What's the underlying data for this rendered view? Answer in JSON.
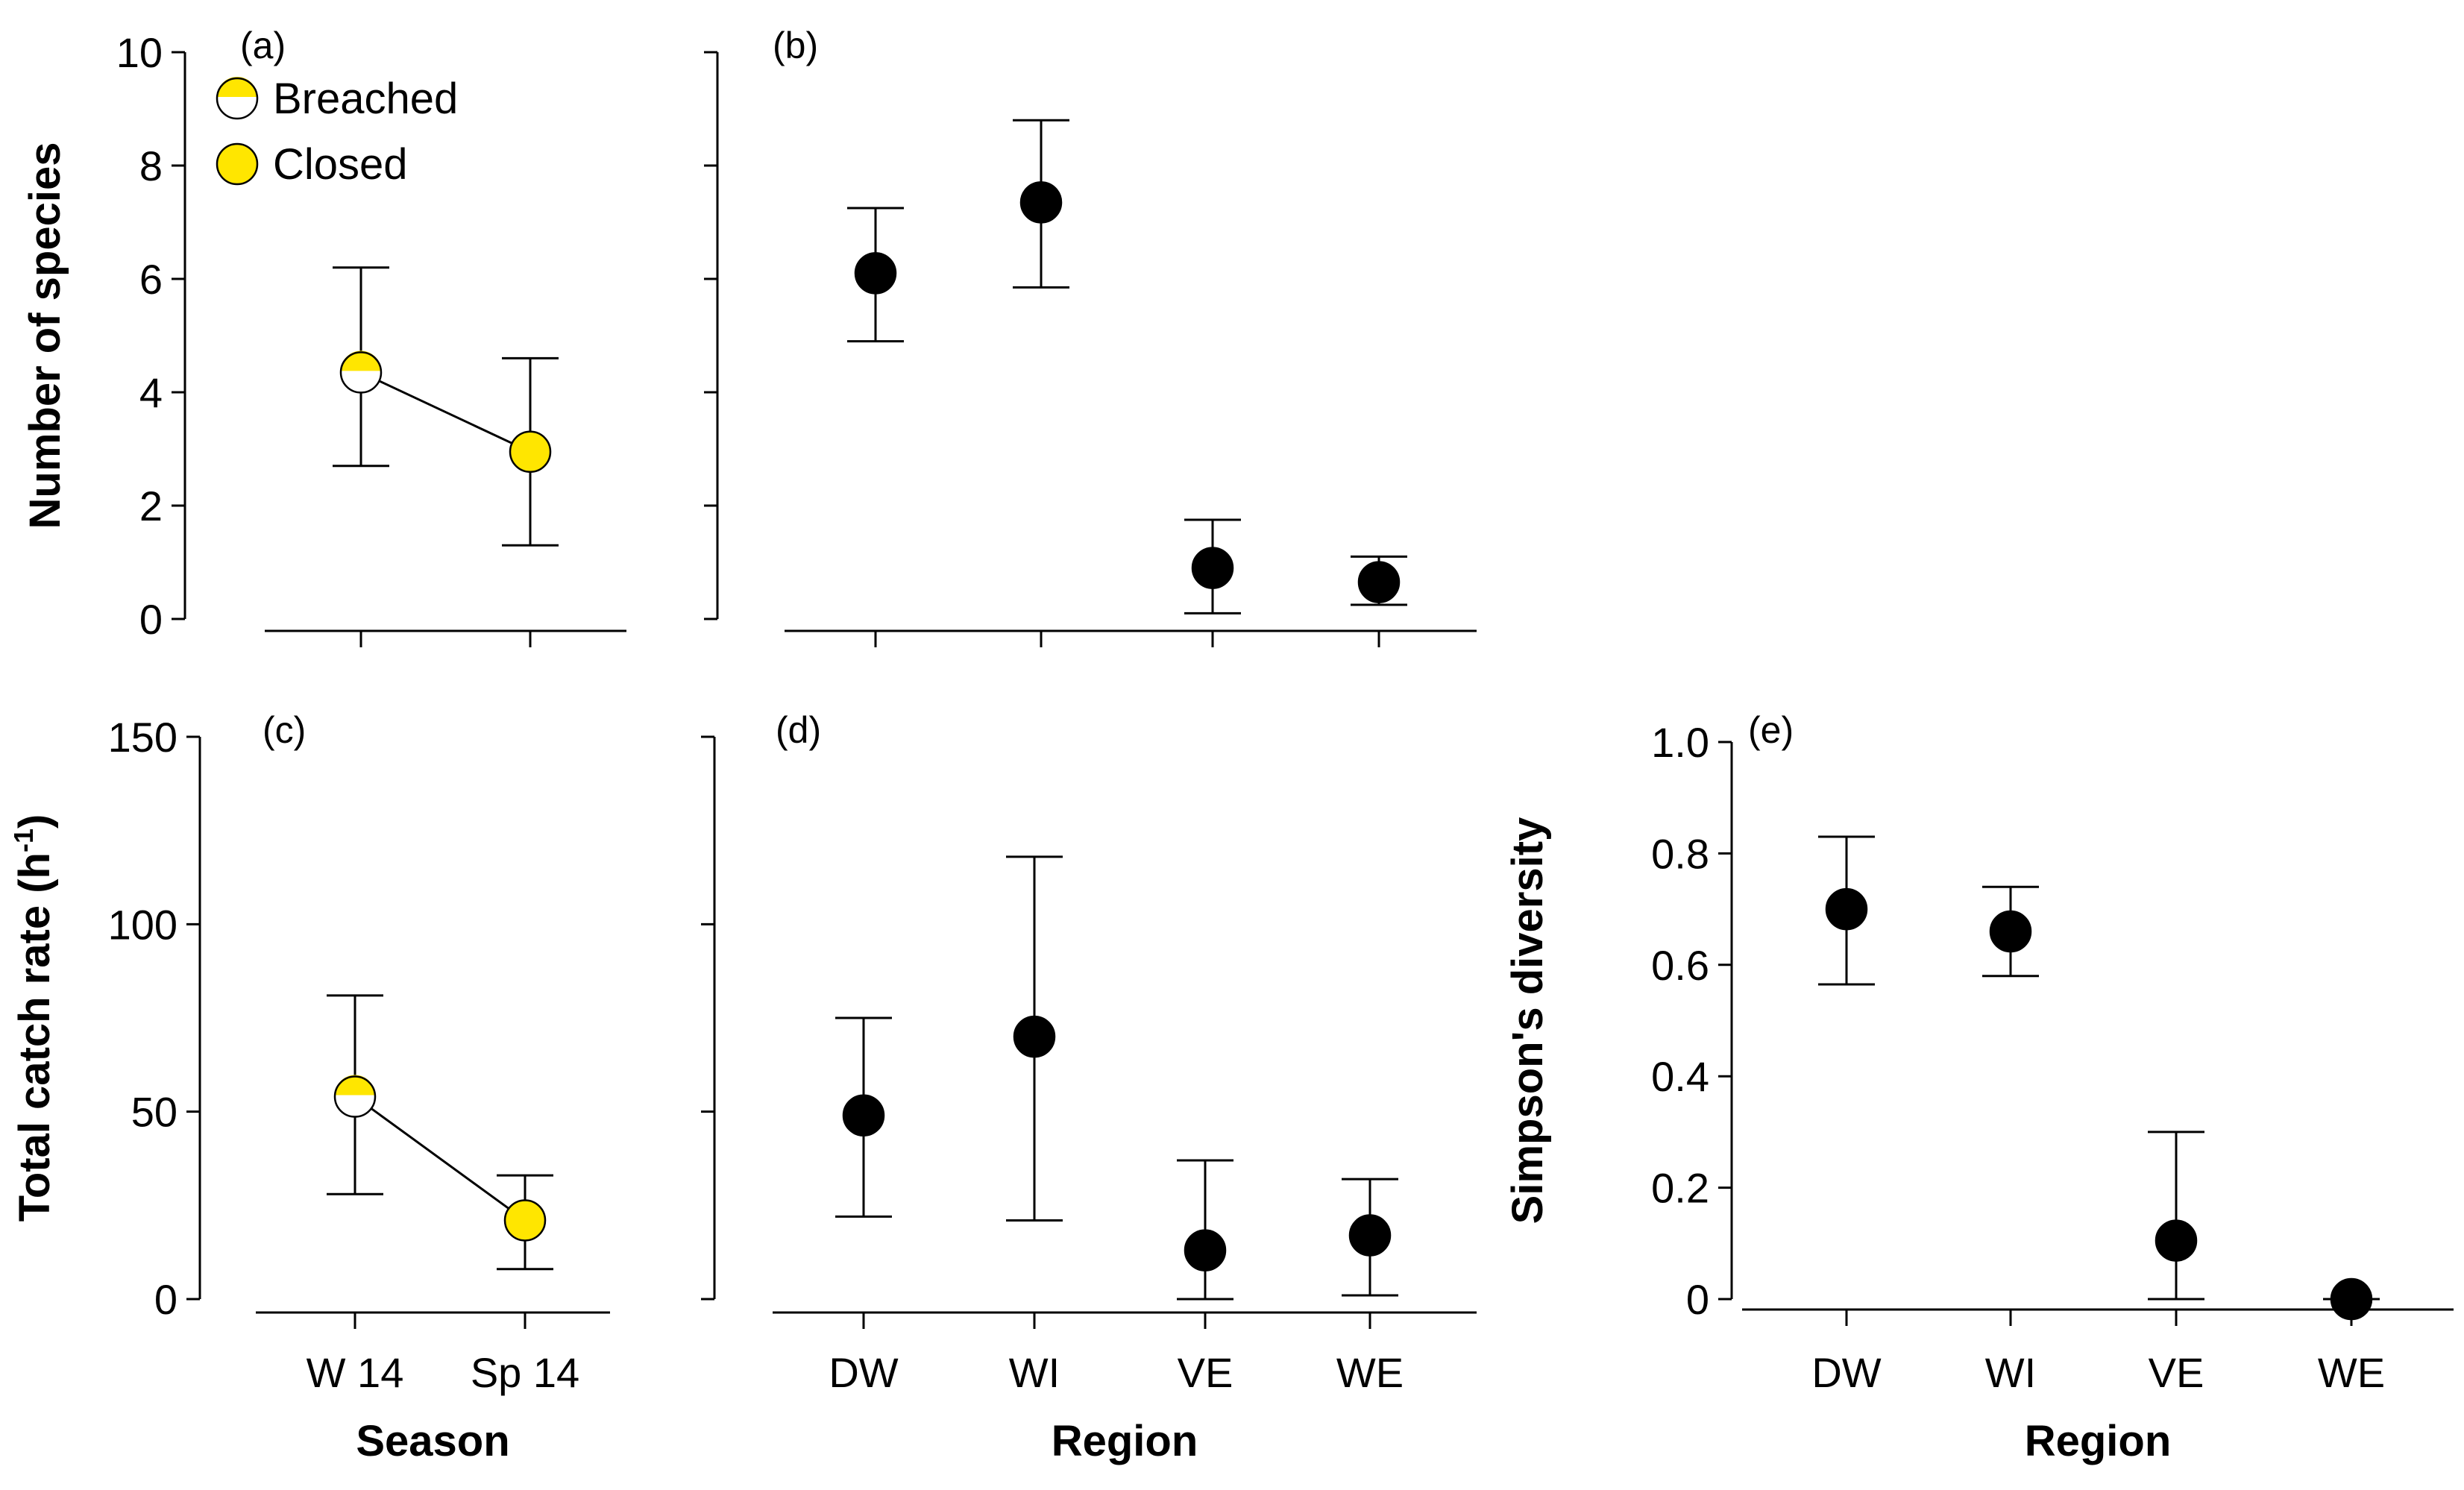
{
  "chart_data": [
    {
      "id": "a",
      "panel_label": "(a)",
      "type": "scatter",
      "connected": true,
      "categories": [
        "W 14",
        "Sp 14"
      ],
      "values": [
        4.35,
        2.95
      ],
      "error_low": [
        2.7,
        1.3
      ],
      "error_high": [
        6.2,
        4.6
      ],
      "marker_styles": [
        "breached",
        "closed"
      ],
      "ylabel": "Number of species",
      "xlabel": "",
      "ylim": [
        0,
        10
      ],
      "yticks": [
        0,
        2,
        4,
        6,
        8,
        10
      ],
      "ytick_labels": [
        "0",
        "2",
        "4",
        "6",
        "8",
        "10"
      ],
      "legend": {
        "position": "top-left",
        "entries": [
          {
            "label": "Breached",
            "style": "breached"
          },
          {
            "label": "Closed",
            "style": "closed"
          }
        ]
      }
    },
    {
      "id": "b",
      "panel_label": "(b)",
      "type": "scatter",
      "connected": false,
      "categories": [
        "DW",
        "WI",
        "VE",
        "WE"
      ],
      "values": [
        6.1,
        7.35,
        0.9,
        0.65
      ],
      "error_low": [
        4.9,
        5.85,
        0.1,
        0.25
      ],
      "error_high": [
        7.25,
        8.8,
        1.75,
        1.1
      ],
      "ylim": [
        0,
        10
      ],
      "yticks": [
        0,
        2,
        4,
        6,
        8,
        10
      ]
    },
    {
      "id": "c",
      "panel_label": "(c)",
      "type": "scatter",
      "connected": true,
      "categories": [
        "W 14",
        "Sp 14"
      ],
      "values": [
        54,
        21
      ],
      "error_low": [
        28,
        8
      ],
      "error_high": [
        81,
        33
      ],
      "marker_styles": [
        "breached",
        "closed"
      ],
      "ylabel": "Total catch rate (h",
      "ylabel_sup": "-1",
      "ylabel_end": ")",
      "xlabel": "Season",
      "ylim": [
        0,
        150
      ],
      "yticks": [
        0,
        50,
        100,
        150
      ],
      "ytick_labels": [
        "0",
        "50",
        "100",
        "150"
      ]
    },
    {
      "id": "d",
      "panel_label": "(d)",
      "type": "scatter",
      "connected": false,
      "categories": [
        "DW",
        "WI",
        "VE",
        "WE"
      ],
      "values": [
        49,
        70,
        13,
        17
      ],
      "error_low": [
        22,
        21,
        0,
        1
      ],
      "error_high": [
        75,
        118,
        37,
        32
      ],
      "xlabel": "Region",
      "ylim": [
        0,
        150
      ],
      "yticks": [
        0,
        50,
        100,
        150
      ]
    },
    {
      "id": "e",
      "panel_label": "(e)",
      "type": "scatter",
      "connected": false,
      "categories": [
        "DW",
        "WI",
        "VE",
        "WE"
      ],
      "values": [
        0.7,
        0.66,
        0.105,
        0.0
      ],
      "error_low": [
        0.565,
        0.58,
        0.0,
        0.0
      ],
      "error_high": [
        0.83,
        0.74,
        0.3,
        0.0
      ],
      "ylabel": "Simpson's diversity",
      "xlabel": "Region",
      "ylim": [
        0,
        1.0
      ],
      "yticks": [
        0,
        0.2,
        0.4,
        0.6,
        0.8,
        1.0
      ],
      "ytick_labels": [
        "0",
        "0.2",
        "0.4",
        "0.6",
        "0.8",
        "1.0"
      ]
    }
  ],
  "colors": {
    "closed_fill": "#FFE600",
    "breached_fill": "#FFFFFF",
    "region_fill": "#000000",
    "stroke": "#000000"
  }
}
